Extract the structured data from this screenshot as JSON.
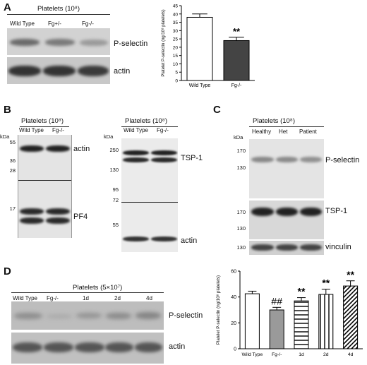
{
  "panels": {
    "A": {
      "letter": "A",
      "header": "Platelets (10⁸)",
      "lanes": [
        "Wild Type",
        "Fg+/-",
        "Fg-/-"
      ],
      "bands": [
        "P-selectin",
        "actin"
      ]
    },
    "B_left": {
      "letter": "B",
      "header": "Platelets (10⁸)",
      "lanes": [
        "Wild Type",
        "Fg-/-"
      ],
      "kda_label": "kDa",
      "markers": [
        "55",
        "36",
        "28",
        "17"
      ],
      "bands": [
        "actin",
        "PF4"
      ]
    },
    "B_right": {
      "header": "Platelets (10⁸)",
      "lanes": [
        "Wild Type",
        "Fg-/-"
      ],
      "kda_label": "kDa",
      "markers": [
        "250",
        "130",
        "95",
        "72",
        "55"
      ],
      "bands": [
        "TSP-1",
        "actin"
      ]
    },
    "C": {
      "letter": "C",
      "header": "Platelets (10⁸)",
      "lanes": [
        "Healthy",
        "Het",
        "Patient"
      ],
      "kda_label": "kDa",
      "markers_top": [
        "170",
        "130"
      ],
      "markers_mid": [
        "170",
        "130"
      ],
      "markers_bot": [
        "130"
      ],
      "bands": [
        "P-selectin",
        "TSP-1",
        "vinculin"
      ]
    },
    "D": {
      "letter": "D",
      "header": "Platelets (5×10⁷)",
      "lanes": [
        "Wild Type",
        "Fg-/-",
        "1d",
        "2d",
        "4d"
      ],
      "bands": [
        "P-selectin",
        "actin"
      ]
    }
  },
  "chart_data": [
    {
      "type": "bar",
      "categories": [
        "Wild Type",
        "Fg-/-"
      ],
      "values": [
        38,
        24
      ],
      "errors": [
        2,
        2
      ],
      "annotations": [
        "",
        "**"
      ],
      "fills": [
        "#ffffff",
        "#444444"
      ],
      "ylabel": "Platelet P-selectin (ng/10⁸ platelets)",
      "ylim": [
        0,
        45
      ],
      "yticks": [
        "0",
        "5",
        "10",
        "15",
        "20",
        "25",
        "30",
        "35",
        "40",
        "45"
      ]
    },
    {
      "type": "bar",
      "categories": [
        "Wild Type",
        "Fg-/-",
        "1d",
        "2d",
        "4d"
      ],
      "values": [
        42.5,
        30,
        37,
        42,
        48.5
      ],
      "errors": [
        2,
        2,
        2.5,
        4,
        4
      ],
      "annotations": [
        "",
        "##",
        "**",
        "**",
        "**"
      ],
      "patterns": [
        "white",
        "gray",
        "horizontal",
        "vertical",
        "diagonal"
      ],
      "ylabel": "Platelet P-selectin (ng/10⁸ platelets)",
      "ylim": [
        0,
        60
      ],
      "yticks": [
        "0",
        "20",
        "40",
        "60"
      ]
    }
  ]
}
